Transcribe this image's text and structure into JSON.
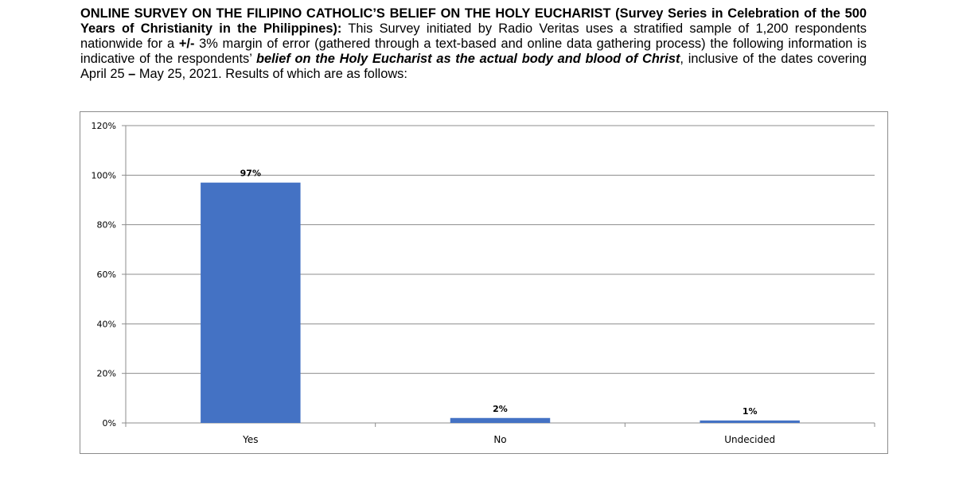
{
  "intro": {
    "title_bold": "ONLINE SURVEY ON THE FILIPINO CATHOLIC’S BELIEF ON THE HOLY EUCHARIST (Survey Series in Celebration of the 500 Years of Christianity in the Philippines):",
    "text_1": " This Survey initiated by Radio Veritas uses a stratified sample of 1,200 respondents nationwide for a ",
    "margin_bold": "+/-",
    "text_2": " 3% margin of error (gathered through a text-based and online data gathering process) the following information is indicative of the respondents’ ",
    "belief_emphasis": "belief on the Holy Eucharist as the actual body and blood of Christ",
    "text_3": ", inclusive of the dates covering April 25 ",
    "dash_bold": "–",
    "text_4": " May 25, 2021.  Results of which are as follows:"
  },
  "chart_data": {
    "type": "bar",
    "categories": [
      "Yes",
      "No",
      "Undecided"
    ],
    "values": [
      97,
      2,
      1
    ],
    "data_labels": [
      "97%",
      "2%",
      "1%"
    ],
    "yticks": [
      "0%",
      "20%",
      "40%",
      "60%",
      "80%",
      "100%",
      "120%"
    ],
    "ylim": [
      0,
      120
    ],
    "grid": true,
    "legend": "none",
    "bar_color": "#4472c4",
    "grid_color": "#8c8c8c"
  }
}
